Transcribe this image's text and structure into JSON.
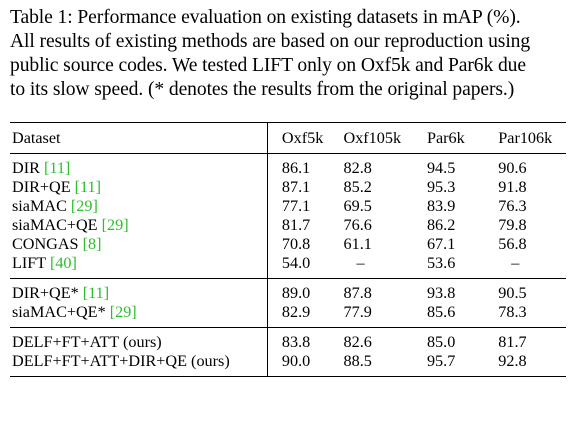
{
  "caption": {
    "lines": [
      "Table 1: Performance evaluation on existing datasets in mAP (%).",
      "All results of existing methods are based on our reproduction using",
      "public source codes. We tested LIFT only on Oxf5k and Par6k due",
      "to its slow speed. (* denotes the results from the original papers.)"
    ]
  },
  "table": {
    "headers": [
      "Dataset",
      "Oxf5k",
      "Oxf105k",
      "Par6k",
      "Par106k"
    ],
    "groups": [
      {
        "rows": [
          {
            "method": "DIR ",
            "ref": "[11]",
            "suffix": "",
            "values": [
              "86.1",
              "82.8",
              "94.5",
              "90.6"
            ],
            "bold": [
              false,
              false,
              false,
              false
            ]
          },
          {
            "method": "DIR+QE ",
            "ref": "[11]",
            "suffix": "",
            "values": [
              "87.1",
              "85.2",
              "95.3",
              "91.8"
            ],
            "bold": [
              false,
              false,
              false,
              false
            ]
          },
          {
            "method": "siaMAC ",
            "ref": "[29]",
            "suffix": "",
            "values": [
              "77.1",
              "69.5",
              "83.9",
              "76.3"
            ],
            "bold": [
              false,
              false,
              false,
              false
            ]
          },
          {
            "method": "siaMAC+QE ",
            "ref": "[29]",
            "suffix": "",
            "values": [
              "81.7",
              "76.6",
              "86.2",
              "79.8"
            ],
            "bold": [
              false,
              false,
              false,
              false
            ]
          },
          {
            "method": "CONGAS ",
            "ref": "[8]",
            "suffix": "",
            "values": [
              "70.8",
              "61.1",
              "67.1",
              "56.8"
            ],
            "bold": [
              false,
              false,
              false,
              false
            ]
          },
          {
            "method": "LIFT ",
            "ref": "[40]",
            "suffix": "",
            "values": [
              "54.0",
              "–",
              "53.6",
              "–"
            ],
            "bold": [
              false,
              false,
              false,
              false
            ]
          }
        ]
      },
      {
        "rows": [
          {
            "method": "DIR+QE* ",
            "ref": "[11]",
            "suffix": "",
            "values": [
              "89.0",
              "87.8",
              "93.8",
              "90.5"
            ],
            "bold": [
              false,
              false,
              false,
              false
            ]
          },
          {
            "method": "siaMAC+QE* ",
            "ref": "[29]",
            "suffix": "",
            "values": [
              "82.9",
              "77.9",
              "85.6",
              "78.3"
            ],
            "bold": [
              false,
              false,
              false,
              false
            ]
          }
        ]
      },
      {
        "rows": [
          {
            "method": "DELF+FT+ATT (ours)",
            "ref": "",
            "suffix": "",
            "values": [
              "83.8",
              "82.6",
              "85.0",
              "81.7"
            ],
            "bold": [
              false,
              false,
              false,
              false
            ]
          },
          {
            "method": "DELF+FT+ATT+DIR+QE (ours)",
            "ref": "",
            "suffix": "",
            "values": [
              "90.0",
              "88.5",
              "95.7",
              "92.8"
            ],
            "bold": [
              true,
              true,
              true,
              true
            ]
          }
        ]
      }
    ]
  }
}
